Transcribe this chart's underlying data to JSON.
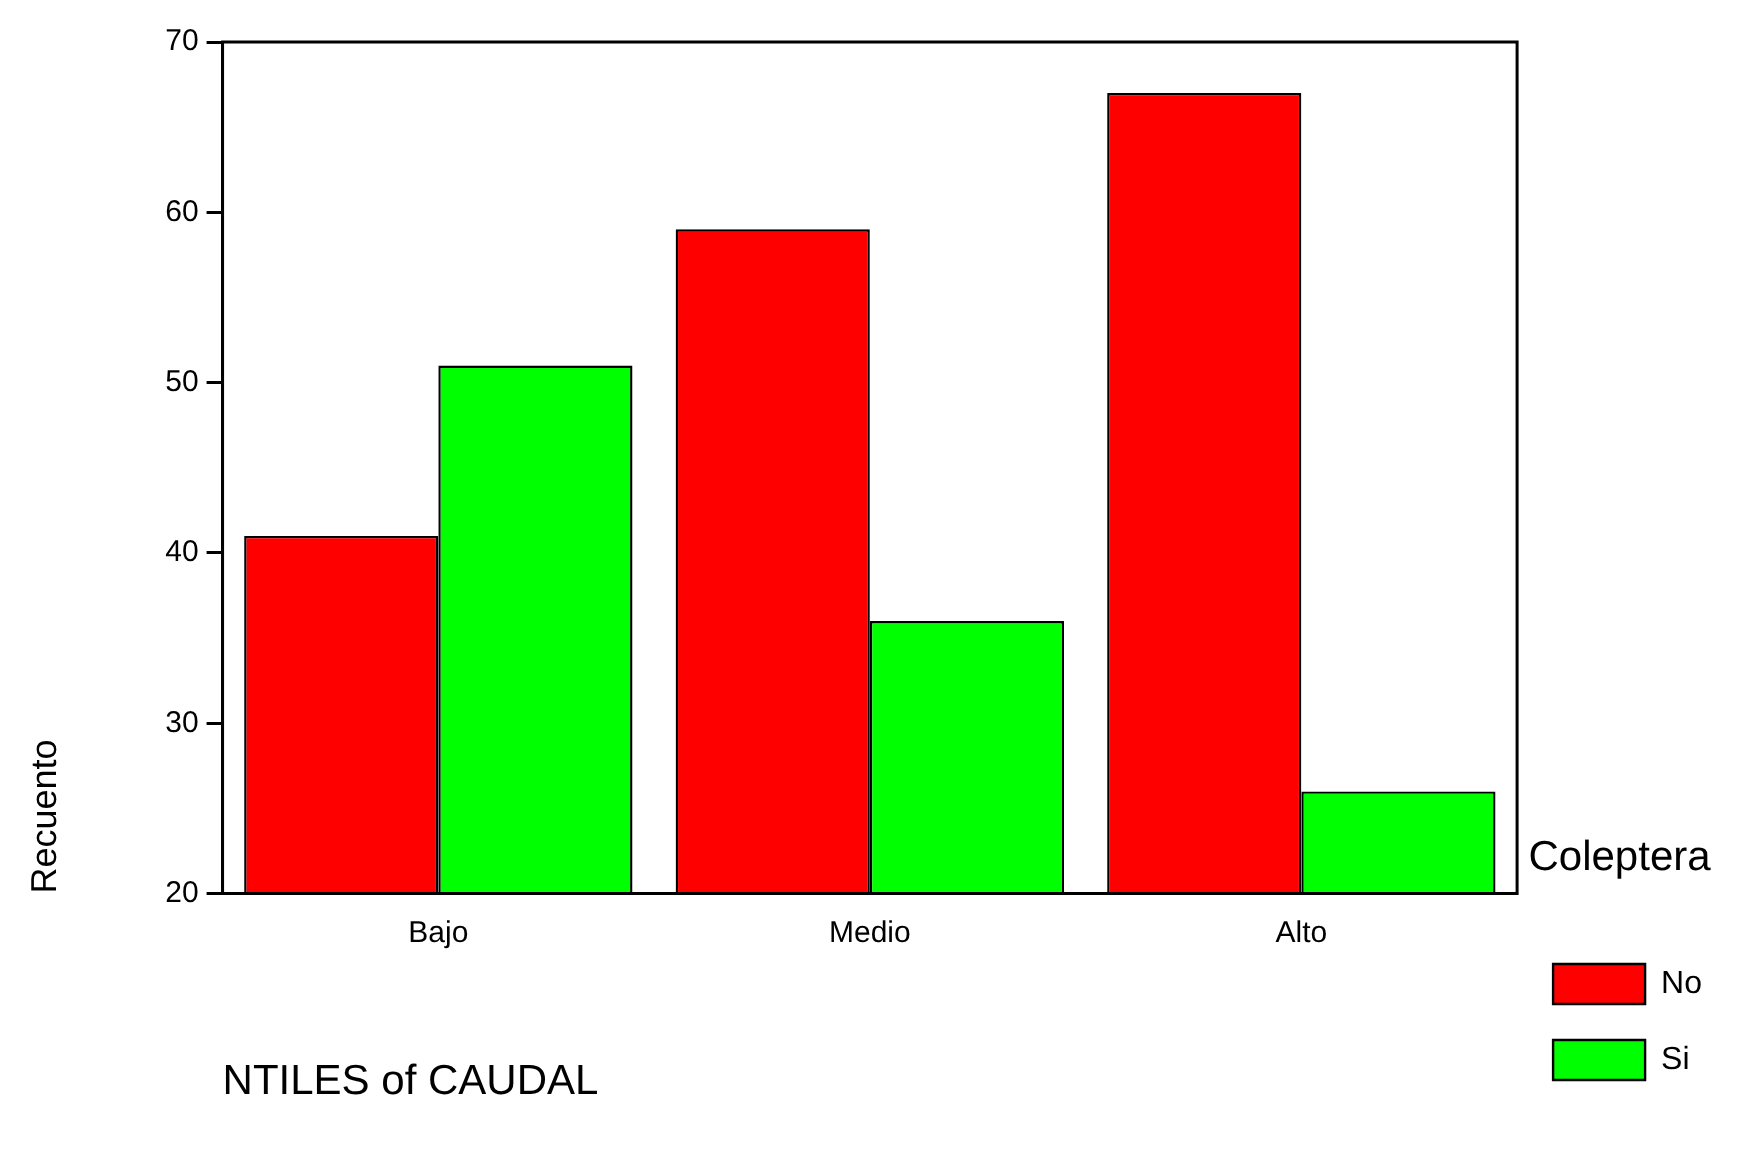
{
  "chart_data": {
    "type": "bar",
    "xlabel": "NTILES of CAUDAL",
    "ylabel": "Recuento",
    "legend_title": "Coleptera",
    "categories": [
      "Bajo",
      "Medio",
      "Alto"
    ],
    "series": [
      {
        "name": "No",
        "color": "#ff0000",
        "values": [
          41,
          59,
          67
        ]
      },
      {
        "name": "Si",
        "color": "#00ff00",
        "values": [
          51,
          36,
          26
        ]
      }
    ],
    "ylim": [
      20,
      70
    ],
    "yticks": [
      20,
      30,
      40,
      50,
      60,
      70
    ],
    "grid": false,
    "legend": "right"
  }
}
